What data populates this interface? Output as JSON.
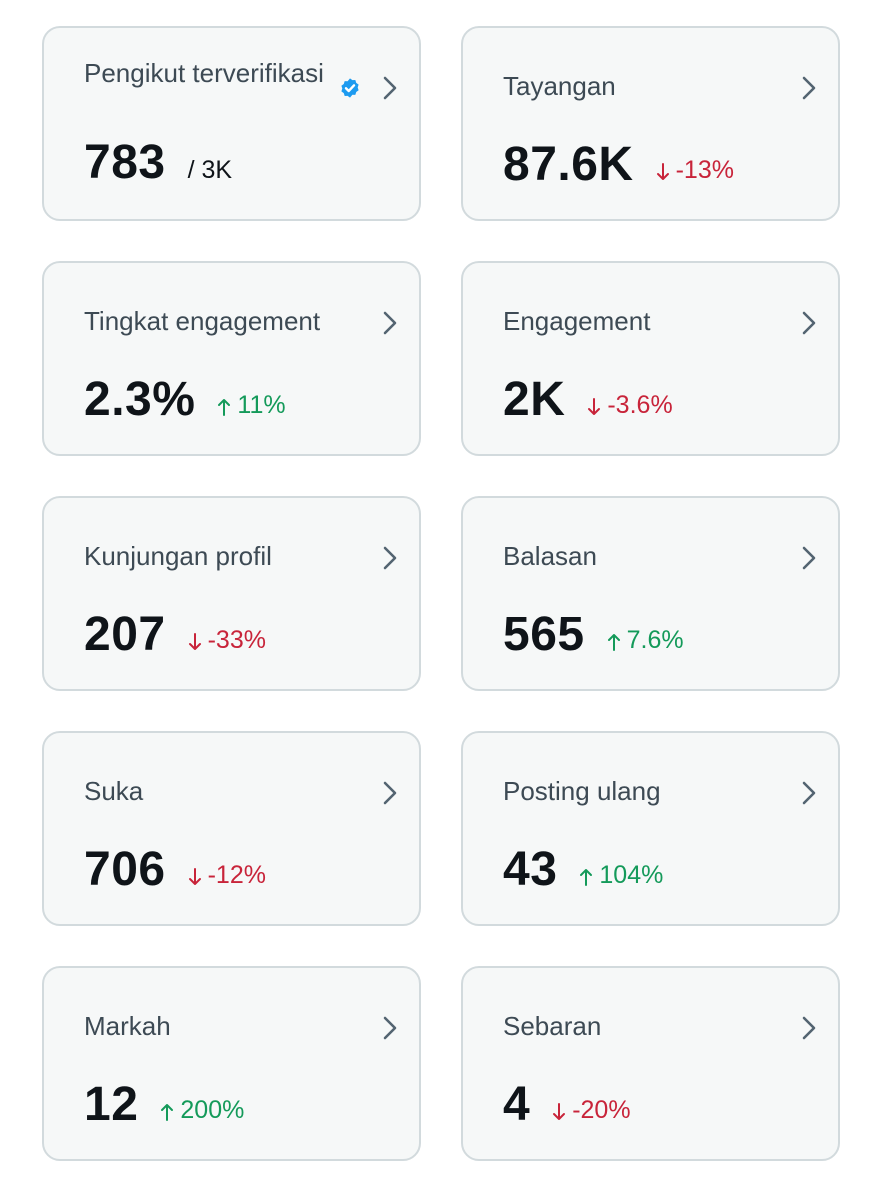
{
  "cards": [
    {
      "id": "followers",
      "label": "Pengikut terverifikasi",
      "value": "783",
      "suffix": "/ 3K",
      "verified": true
    },
    {
      "id": "views",
      "label": "Tayangan",
      "value": "87.6K",
      "change": "-13%",
      "direction": "down"
    },
    {
      "id": "engagement-rate",
      "label": "Tingkat engagement",
      "value": "2.3%",
      "change": "11%",
      "direction": "up"
    },
    {
      "id": "engagement",
      "label": "Engagement",
      "value": "2K",
      "change": "-3.6%",
      "direction": "down"
    },
    {
      "id": "profile-visits",
      "label": "Kunjungan profil",
      "value": "207",
      "change": "-33%",
      "direction": "down"
    },
    {
      "id": "replies",
      "label": "Balasan",
      "value": "565",
      "change": "7.6%",
      "direction": "up"
    },
    {
      "id": "likes",
      "label": "Suka",
      "value": "706",
      "change": "-12%",
      "direction": "down"
    },
    {
      "id": "reposts",
      "label": "Posting ulang",
      "value": "43",
      "change": "104%",
      "direction": "up"
    },
    {
      "id": "bookmarks",
      "label": "Markah",
      "value": "12",
      "change": "200%",
      "direction": "up"
    },
    {
      "id": "shares",
      "label": "Sebaran",
      "value": "4",
      "change": "-20%",
      "direction": "down"
    }
  ],
  "icons": {
    "chevron": "chevron-right-icon",
    "verified": "verified-badge-icon",
    "up": "arrow-up-icon",
    "down": "arrow-down-icon"
  },
  "colors": {
    "up": "#149a5a",
    "down": "#c8243a",
    "verified": "#1d9bf0",
    "chevron": "#536471"
  }
}
